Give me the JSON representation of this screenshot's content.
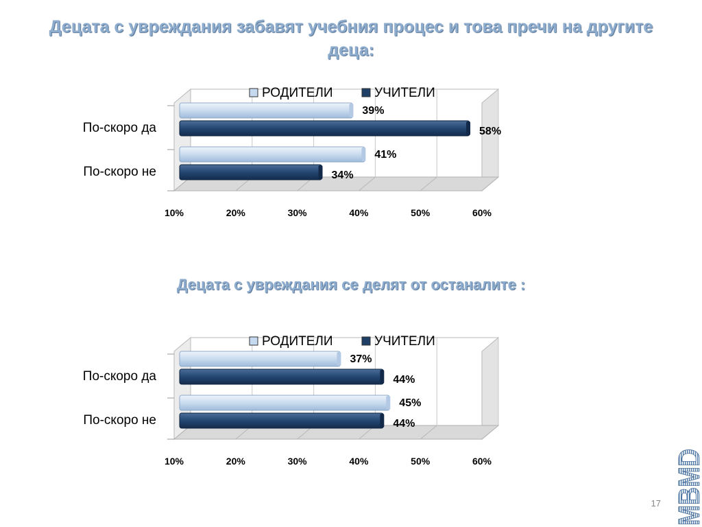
{
  "titles": [
    "Децата с увреждания забавят учебния процес и това пречи на другите деца:",
    "Децата с увреждания се делят от останалите :"
  ],
  "colors": {
    "parents": "#c5d9f0",
    "teachers": "#1f3f66",
    "title": "#8eaccd"
  },
  "chart_data": [
    {
      "type": "bar",
      "orientation": "horizontal",
      "categories": [
        "По-скоро да",
        "По-скоро не"
      ],
      "series": [
        {
          "name": "РОДИТЕЛИ",
          "values": [
            39,
            41
          ]
        },
        {
          "name": "УЧИТЕЛИ",
          "values": [
            58,
            34
          ]
        }
      ],
      "value_labels": [
        [
          "39%",
          "41%"
        ],
        [
          "58%",
          "34%"
        ]
      ],
      "xlim": [
        10,
        60
      ],
      "x_ticks": [
        "10%",
        "20%",
        "30%",
        "40%",
        "50%",
        "60%"
      ],
      "legend": "top",
      "grid": true
    },
    {
      "type": "bar",
      "orientation": "horizontal",
      "categories": [
        "По-скоро да",
        "По-скоро не"
      ],
      "series": [
        {
          "name": "РОДИТЕЛИ",
          "values": [
            37,
            45
          ]
        },
        {
          "name": "УЧИТЕЛИ",
          "values": [
            44,
            44
          ]
        }
      ],
      "value_labels": [
        [
          "37%",
          "45%"
        ],
        [
          "44%",
          "44%"
        ]
      ],
      "xlim": [
        10,
        60
      ],
      "x_ticks": [
        "10%",
        "20%",
        "30%",
        "40%",
        "50%",
        "60%"
      ],
      "legend": "top",
      "grid": true
    }
  ],
  "slide_number": "17",
  "logo_text": "MBMD"
}
